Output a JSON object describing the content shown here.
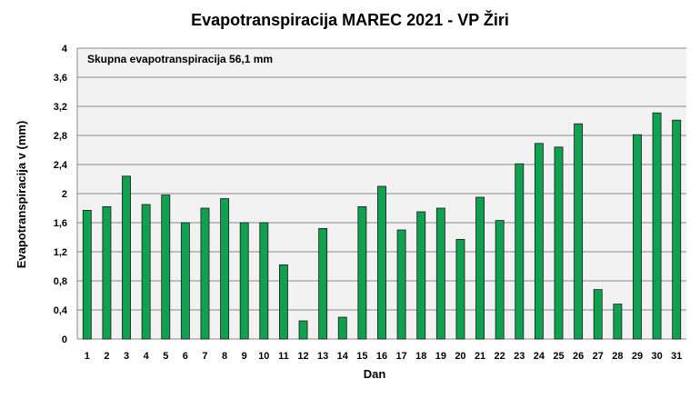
{
  "chart_data": {
    "type": "bar",
    "title": "Evapotranspiracija  MAREC 2021 - VP Žiri",
    "annotation": "Skupna evapotranspiracija  56,1 mm",
    "xlabel": "Dan",
    "ylabel": "Evapotranspiracija v  (mm)",
    "ylim": [
      0,
      4
    ],
    "yticks": [
      "0",
      "0,4",
      "0,8",
      "1,2",
      "1,6",
      "2",
      "2,4",
      "2,8",
      "3,2",
      "3,6",
      "4"
    ],
    "categories": [
      "1",
      "2",
      "3",
      "4",
      "5",
      "6",
      "7",
      "8",
      "9",
      "10",
      "11",
      "12",
      "13",
      "14",
      "15",
      "16",
      "17",
      "18",
      "19",
      "20",
      "21",
      "22",
      "23",
      "24",
      "25",
      "26",
      "27",
      "28",
      "29",
      "30",
      "31"
    ],
    "values": [
      1.77,
      1.82,
      2.24,
      1.85,
      1.98,
      1.6,
      1.8,
      1.93,
      1.6,
      1.6,
      1.02,
      0.25,
      1.52,
      0.3,
      1.82,
      2.1,
      1.5,
      1.75,
      1.8,
      1.37,
      1.95,
      1.63,
      2.41,
      2.69,
      2.64,
      2.96,
      0.68,
      0.48,
      2.81,
      3.11,
      3.01
    ],
    "grid": true,
    "bar_color": "#0fa050",
    "plot_background": "#f2f2f2"
  }
}
